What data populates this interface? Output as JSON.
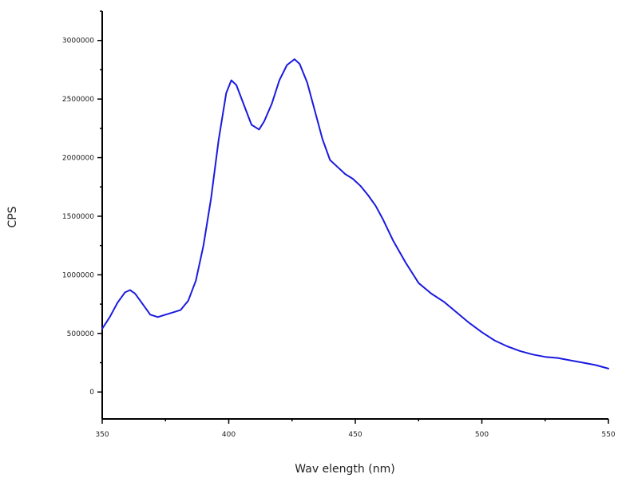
{
  "chart_data": {
    "type": "line",
    "title": "",
    "xlabel": "Wav elength (nm)",
    "ylabel": "CPS",
    "xlim": [
      350,
      550
    ],
    "ylim": [
      -230000,
      3250000
    ],
    "x_ticks": [
      350,
      400,
      450,
      500,
      550
    ],
    "x_tick_labels": [
      "350",
      "400",
      "450",
      "500",
      "550"
    ],
    "y_ticks": [
      0,
      500000,
      1000000,
      1500000,
      2000000,
      2500000,
      3000000
    ],
    "y_tick_labels": [
      "0",
      "500000",
      "1000000",
      "1500000",
      "2000000",
      "2500000",
      "3000000"
    ],
    "grid": false,
    "series": [
      {
        "color": "#1a1adf",
        "x": [
          350,
          353,
          356,
          359,
          361,
          363,
          366,
          369,
          372,
          375,
          378,
          381,
          384,
          387,
          390,
          393,
          396,
          399,
          401,
          403,
          406,
          409,
          412,
          414,
          417,
          420,
          423,
          426,
          428,
          431,
          434,
          437,
          440,
          443,
          446,
          449,
          452,
          455,
          458,
          461,
          465,
          470,
          475,
          480,
          485,
          490,
          495,
          500,
          505,
          510,
          515,
          520,
          525,
          530,
          535,
          540,
          545,
          550
        ],
        "y": [
          540000,
          640000,
          760000,
          850000,
          870000,
          840000,
          750000,
          660000,
          640000,
          660000,
          680000,
          700000,
          780000,
          950000,
          1250000,
          1650000,
          2150000,
          2550000,
          2660000,
          2620000,
          2450000,
          2280000,
          2240000,
          2310000,
          2460000,
          2660000,
          2790000,
          2840000,
          2800000,
          2640000,
          2400000,
          2160000,
          1980000,
          1920000,
          1860000,
          1820000,
          1760000,
          1680000,
          1590000,
          1470000,
          1290000,
          1100000,
          930000,
          840000,
          770000,
          680000,
          590000,
          510000,
          440000,
          390000,
          350000,
          320000,
          300000,
          290000,
          270000,
          250000,
          230000,
          200000
        ]
      }
    ]
  }
}
